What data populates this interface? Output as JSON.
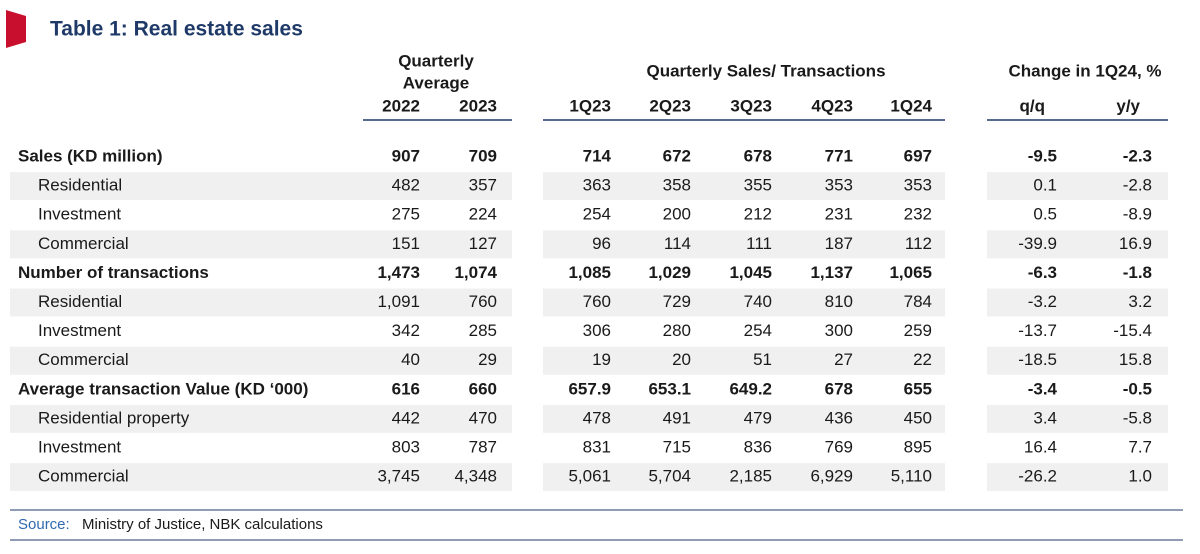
{
  "title": "Table 1: Real estate sales",
  "header": {
    "groups": [
      {
        "lines": [
          "Quarterly",
          "Average"
        ]
      },
      {
        "lines": [
          "Quarterly Sales/ Transactions"
        ]
      },
      {
        "lines": [
          "Change in 1Q24, %"
        ]
      }
    ],
    "columns": [
      "2022",
      "2023",
      "1Q23",
      "2Q23",
      "3Q23",
      "4Q23",
      "1Q24",
      "q/q",
      "y/y"
    ]
  },
  "rows": [
    {
      "label": "Sales (KD million)",
      "bold": true,
      "values": [
        "907",
        "709",
        "714",
        "672",
        "678",
        "771",
        "697",
        "-9.5",
        "-2.3"
      ]
    },
    {
      "label": "Residential",
      "bold": false,
      "values": [
        "482",
        "357",
        "363",
        "358",
        "355",
        "353",
        "353",
        "0.1",
        "-2.8"
      ]
    },
    {
      "label": "Investment",
      "bold": false,
      "values": [
        "275",
        "224",
        "254",
        "200",
        "212",
        "231",
        "232",
        "0.5",
        "-8.9"
      ]
    },
    {
      "label": "Commercial",
      "bold": false,
      "values": [
        "151",
        "127",
        "96",
        "114",
        "111",
        "187",
        "112",
        "-39.9",
        "16.9"
      ]
    },
    {
      "label": "Number of transactions",
      "bold": true,
      "values": [
        "1,473",
        "1,074",
        "1,085",
        "1,029",
        "1,045",
        "1,137",
        "1,065",
        "-6.3",
        "-1.8"
      ]
    },
    {
      "label": "Residential",
      "bold": false,
      "values": [
        "1,091",
        "760",
        "760",
        "729",
        "740",
        "810",
        "784",
        "-3.2",
        "3.2"
      ]
    },
    {
      "label": "Investment",
      "bold": false,
      "values": [
        "342",
        "285",
        "306",
        "280",
        "254",
        "300",
        "259",
        "-13.7",
        "-15.4"
      ]
    },
    {
      "label": "Commercial",
      "bold": false,
      "values": [
        "40",
        "29",
        "19",
        "20",
        "51",
        "27",
        "22",
        "-18.5",
        "15.8"
      ]
    },
    {
      "label": "Average transaction Value (KD ‘000)",
      "bold": true,
      "values": [
        "616",
        "660",
        "657.9",
        "653.1",
        "649.2",
        "678",
        "655",
        "-3.4",
        "-0.5"
      ]
    },
    {
      "label": "Residential property",
      "bold": false,
      "values": [
        "442",
        "470",
        "478",
        "491",
        "479",
        "436",
        "450",
        "3.4",
        "-5.8"
      ]
    },
    {
      "label": "Investment",
      "bold": false,
      "values": [
        "803",
        "787",
        "831",
        "715",
        "836",
        "769",
        "895",
        "16.4",
        "7.7"
      ]
    },
    {
      "label": "Commercial",
      "bold": false,
      "values": [
        "3,745",
        "4,348",
        "5,061",
        "5,704",
        "2,185",
        "6,929",
        "5,110",
        "-26.2",
        "1.0"
      ]
    }
  ],
  "source": {
    "label": "Source:",
    "text": "Ministry of Justice, NBK calculations"
  }
}
